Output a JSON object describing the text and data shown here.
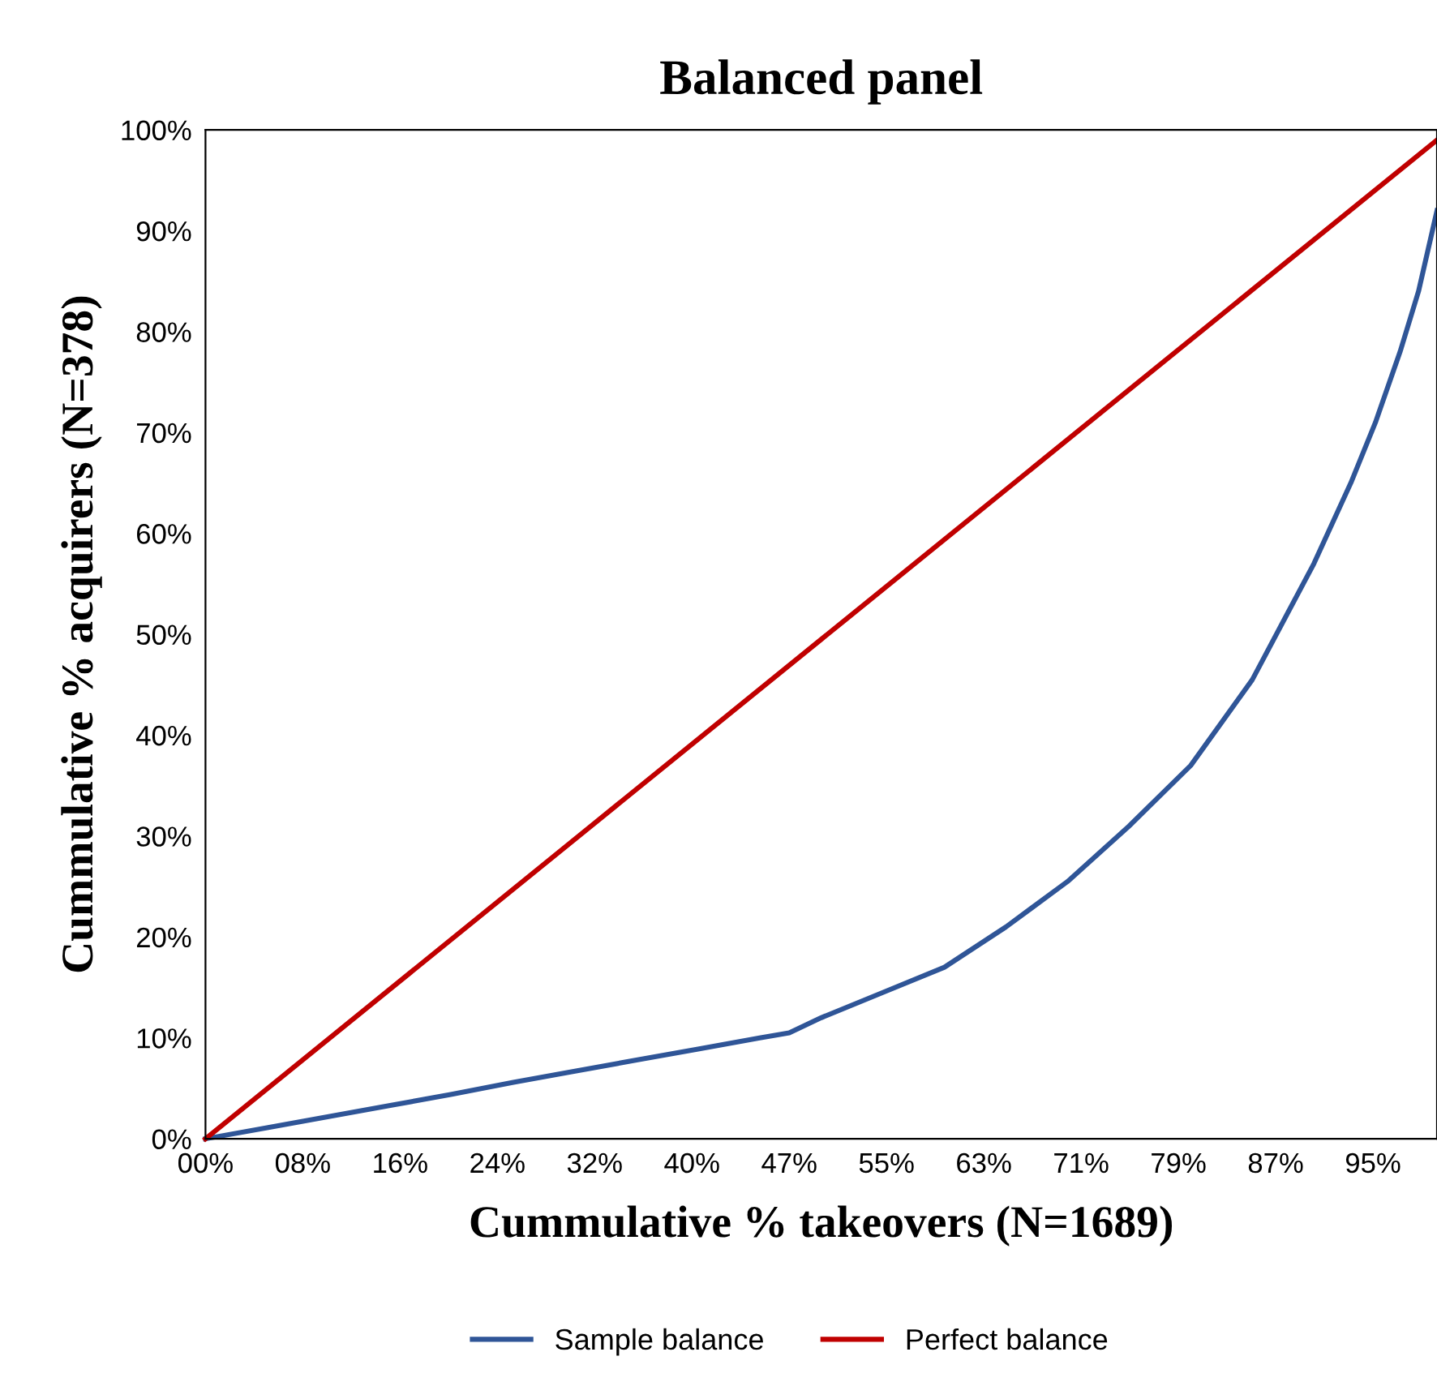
{
  "chart_data": {
    "type": "line",
    "title": "Balanced panel",
    "xlabel": "Cummulative % takeovers (N=1689)",
    "ylabel": "Cummulative % acquirers (N=378)",
    "xlim": [
      0,
      100
    ],
    "ylim": [
      0,
      100
    ],
    "xticks": [
      {
        "value": 0,
        "label": "00%"
      },
      {
        "value": 7.9,
        "label": "08%"
      },
      {
        "value": 15.8,
        "label": "16%"
      },
      {
        "value": 23.7,
        "label": "24%"
      },
      {
        "value": 31.6,
        "label": "32%"
      },
      {
        "value": 39.5,
        "label": "40%"
      },
      {
        "value": 47.4,
        "label": "47%"
      },
      {
        "value": 55.3,
        "label": "55%"
      },
      {
        "value": 63.2,
        "label": "63%"
      },
      {
        "value": 71.1,
        "label": "71%"
      },
      {
        "value": 79.0,
        "label": "79%"
      },
      {
        "value": 86.9,
        "label": "87%"
      },
      {
        "value": 94.8,
        "label": "95%"
      }
    ],
    "yticks": [
      {
        "value": 0,
        "label": "0%"
      },
      {
        "value": 10,
        "label": "10%"
      },
      {
        "value": 20,
        "label": "20%"
      },
      {
        "value": 30,
        "label": "30%"
      },
      {
        "value": 40,
        "label": "40%"
      },
      {
        "value": 50,
        "label": "50%"
      },
      {
        "value": 60,
        "label": "60%"
      },
      {
        "value": 70,
        "label": "70%"
      },
      {
        "value": 80,
        "label": "80%"
      },
      {
        "value": 90,
        "label": "90%"
      },
      {
        "value": 100,
        "label": "100%"
      }
    ],
    "grid": false,
    "legend": "bottom",
    "marker": "none",
    "line_style": "solid",
    "series": [
      {
        "name": "Sample balance",
        "color": "#2f5597",
        "x": [
          0,
          5,
          10,
          15,
          20,
          25,
          30,
          35,
          40,
          45,
          47.4,
          50,
          55,
          60,
          65,
          70,
          75,
          80,
          85,
          90,
          93,
          95,
          97,
          98.5,
          100
        ],
        "values": [
          0,
          1.1,
          2.2,
          3.3,
          4.4,
          5.6,
          6.7,
          7.8,
          8.9,
          10,
          10.5,
          12,
          14.5,
          17,
          21,
          25.5,
          31,
          37,
          45.5,
          57,
          65,
          71,
          78,
          84,
          92
        ]
      },
      {
        "name": "Perfect balance",
        "color": "#c00000",
        "x": [
          0,
          100
        ],
        "values": [
          0,
          99
        ]
      }
    ]
  }
}
